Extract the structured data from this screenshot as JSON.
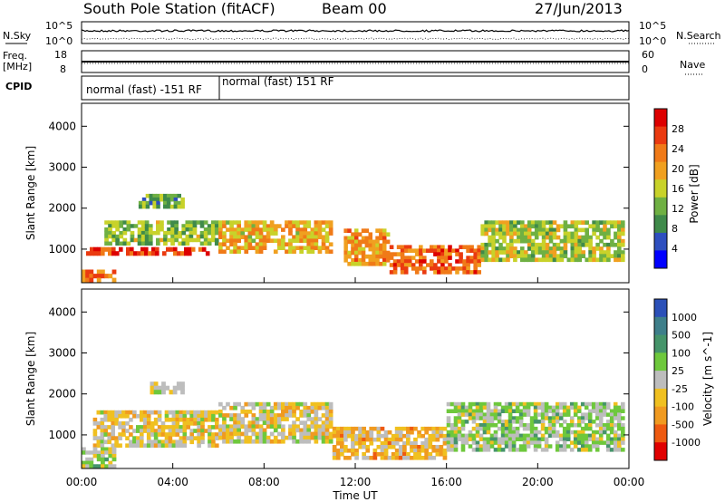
{
  "header": {
    "station": "South Pole Station (fitACF)",
    "beam": "Beam 00",
    "date": "27/Jun/2013"
  },
  "strips": {
    "nsky_label": "N.Sky",
    "nsearch_label": "N.Search",
    "noise_ticks": [
      "10^5",
      "10^0"
    ],
    "noise_ticks_right": [
      "10^5",
      "10^0"
    ],
    "freq_label_1": "Freq.",
    "freq_label_2": "[MHz]",
    "freq_ticks": [
      "18",
      "8"
    ],
    "nave_label": "Nave",
    "nave_ticks": [
      "60",
      "0"
    ],
    "cpid_label": "CPID",
    "cpid_segments": [
      {
        "label": "normal (fast) -151 RF",
        "start_hour": 0,
        "end_hour": 6
      },
      {
        "label": "normal (fast) 151 RF",
        "start_hour": 6,
        "end_hour": 24
      }
    ]
  },
  "xaxis": {
    "label": "Time UT",
    "ticks": [
      "00:00",
      "04:00",
      "08:00",
      "12:00",
      "16:00",
      "20:00",
      "00:00"
    ]
  },
  "power_panel": {
    "ylabel": "Slant Range [km]",
    "yticks": [
      "1000",
      "2000",
      "3000",
      "4000"
    ],
    "colorbar_label": "Power [dB]",
    "colorbar_ticks": [
      "4",
      "8",
      "12",
      "16",
      "20",
      "24",
      "28"
    ]
  },
  "velocity_panel": {
    "ylabel": "Slant Range [km]",
    "yticks": [
      "1000",
      "2000",
      "3000",
      "4000"
    ],
    "colorbar_label": "Velocity [m s^-1]",
    "colorbar_ticks": [
      "1000",
      "500",
      "100",
      "25",
      "-25",
      "-100",
      "-500",
      "-1000"
    ]
  },
  "colors": {
    "power_scale": [
      "#0000ff",
      "#2e4fbf",
      "#3f8a4a",
      "#6fb043",
      "#c8d22a",
      "#f0a020",
      "#f07a18",
      "#ea3a10",
      "#dd0000"
    ],
    "velocity_scale": [
      "#2b50b8",
      "#3e7f8a",
      "#45946a",
      "#6ec83c",
      "#bdbdbd",
      "#f0c020",
      "#f09a20",
      "#ee5a10",
      "#e00000"
    ]
  },
  "chart_data": [
    {
      "type": "heatmap",
      "title": "Power",
      "x_range_hours": [
        0,
        24
      ],
      "y_range_km": [
        180,
        4560
      ],
      "zlabel": "Power [dB]",
      "z_range": [
        0,
        30
      ],
      "regions": [
        {
          "t": [
            0.2,
            5.6
          ],
          "r": [
            850,
            1050
          ],
          "z": 27
        },
        {
          "t": [
            1.0,
            6.0
          ],
          "r": [
            1100,
            1700
          ],
          "z": 12
        },
        {
          "t": [
            2.5,
            4.5
          ],
          "r": [
            2000,
            2350
          ],
          "z": 10
        },
        {
          "t": [
            6.0,
            11.0
          ],
          "r": [
            900,
            1700
          ],
          "z": 18
        },
        {
          "t": [
            11.5,
            13.5
          ],
          "r": [
            600,
            1500
          ],
          "z": 20
        },
        {
          "t": [
            13.5,
            17.5
          ],
          "r": [
            400,
            1100
          ],
          "z": 24
        },
        {
          "t": [
            17.5,
            23.8
          ],
          "r": [
            700,
            1700
          ],
          "z": 14
        },
        {
          "t": [
            0.0,
            1.5
          ],
          "r": [
            200,
            500
          ],
          "z": 22
        }
      ]
    },
    {
      "type": "heatmap",
      "title": "Velocity",
      "x_range_hours": [
        0,
        24
      ],
      "y_range_km": [
        180,
        4560
      ],
      "zlabel": "Velocity [m s^-1]",
      "z_range": [
        -1000,
        1000
      ],
      "regions": [
        {
          "t": [
            0.5,
            6.0
          ],
          "r": [
            700,
            1600
          ],
          "z": -150
        },
        {
          "t": [
            3.0,
            4.5
          ],
          "r": [
            2000,
            2300
          ],
          "z": 0
        },
        {
          "t": [
            6.0,
            11.0
          ],
          "r": [
            800,
            1800
          ],
          "z": -120
        },
        {
          "t": [
            11.0,
            16.0
          ],
          "r": [
            400,
            1200
          ],
          "z": -300
        },
        {
          "t": [
            16.0,
            23.8
          ],
          "r": [
            600,
            1800
          ],
          "z": 120
        },
        {
          "t": [
            0.0,
            1.5
          ],
          "r": [
            200,
            700
          ],
          "z": 80
        }
      ]
    }
  ]
}
